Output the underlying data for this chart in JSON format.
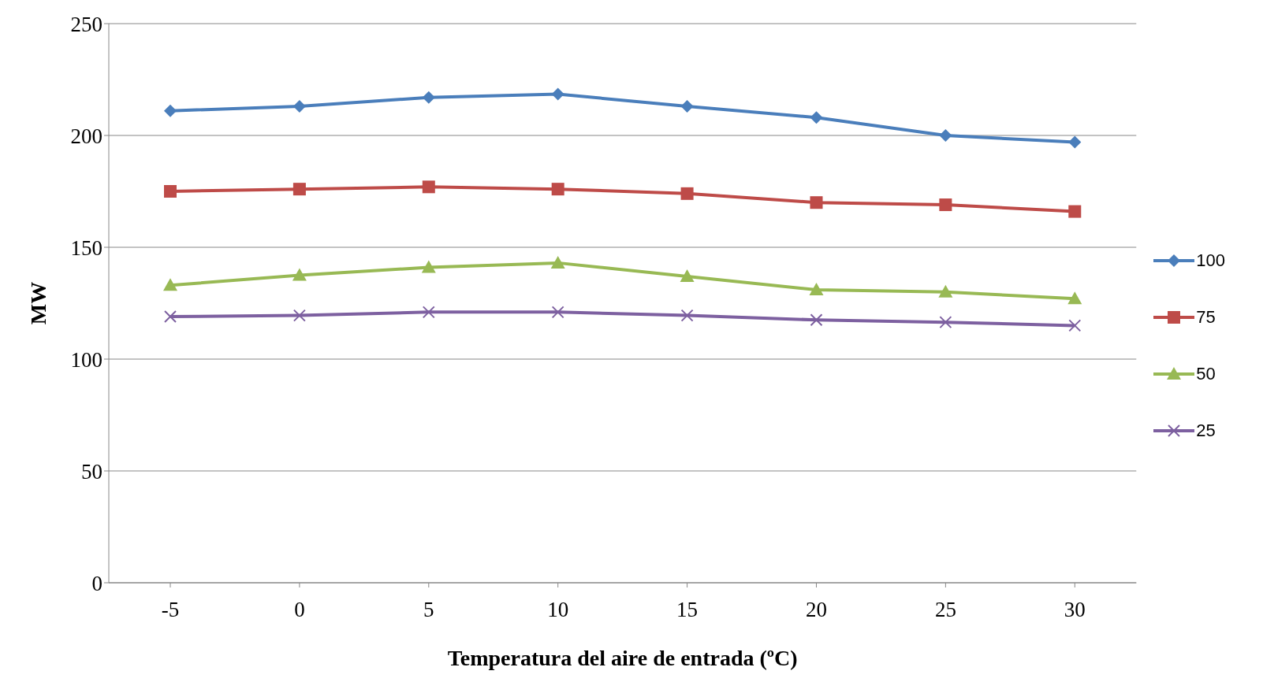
{
  "chart_data": {
    "type": "line",
    "xlabel": "Temperatura del aire de entrada (ºC)",
    "ylabel": "MW",
    "categories": [
      "-5",
      "0",
      "5",
      "10",
      "15",
      "20",
      "25",
      "30"
    ],
    "series": [
      {
        "name": "100",
        "color": "#4a7ebb",
        "marker": "diamond",
        "values": [
          211,
          213,
          217,
          218.5,
          213,
          208,
          200,
          197
        ]
      },
      {
        "name": "75",
        "color": "#be4b48",
        "marker": "square",
        "values": [
          175,
          176,
          177,
          176,
          174,
          170,
          169,
          166
        ]
      },
      {
        "name": "50",
        "color": "#98b954",
        "marker": "triangle",
        "values": [
          133,
          137.5,
          141,
          143,
          137,
          131,
          130,
          127
        ]
      },
      {
        "name": "25",
        "color": "#7d60a0",
        "marker": "cross",
        "values": [
          119,
          119.5,
          121,
          121,
          119.5,
          117.5,
          116.5,
          115
        ]
      }
    ],
    "ylim": [
      0,
      250
    ],
    "yticks": [
      0,
      50,
      100,
      150,
      200,
      250
    ],
    "grid": "y",
    "legend": "right",
    "line_style": "solid"
  }
}
